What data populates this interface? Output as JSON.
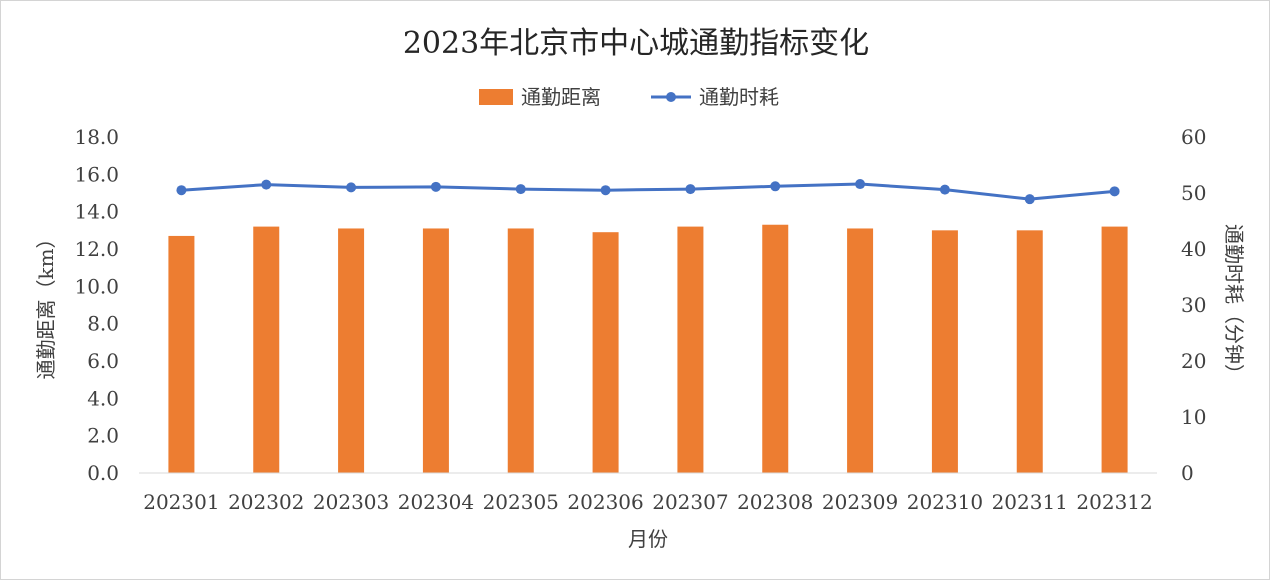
{
  "chart_data": {
    "type": "bar+line",
    "title": "2023年北京市中心城通勤指标变化",
    "xlabel": "月份",
    "ylabel_left": "通勤距离（km）",
    "ylabel_right": "通勤时耗（分钟）",
    "categories": [
      "202301",
      "202302",
      "202303",
      "202304",
      "202305",
      "202306",
      "202307",
      "202308",
      "202309",
      "202310",
      "202311",
      "202312"
    ],
    "y_left": {
      "min": 0,
      "max": 18,
      "step": 2,
      "ticks": [
        "0.0",
        "2.0",
        "4.0",
        "6.0",
        "8.0",
        "10.0",
        "12.0",
        "14.0",
        "16.0",
        "18.0"
      ]
    },
    "y_right": {
      "min": 0,
      "max": 60,
      "step": 10,
      "ticks": [
        "0",
        "10",
        "20",
        "30",
        "40",
        "50",
        "60"
      ]
    },
    "grid": false,
    "legend_position": "top",
    "series": [
      {
        "name": "通勤距离",
        "type": "bar",
        "axis": "left",
        "color": "#ED7D31",
        "values": [
          12.7,
          13.2,
          13.1,
          13.1,
          13.1,
          12.9,
          13.2,
          13.3,
          13.1,
          13.0,
          13.0,
          13.2
        ]
      },
      {
        "name": "通勤时耗",
        "type": "line",
        "axis": "right",
        "color": "#4472C4",
        "values": [
          50.5,
          51.5,
          51.0,
          51.1,
          50.7,
          50.5,
          50.7,
          51.2,
          51.6,
          50.6,
          48.9,
          50.3
        ]
      }
    ]
  }
}
